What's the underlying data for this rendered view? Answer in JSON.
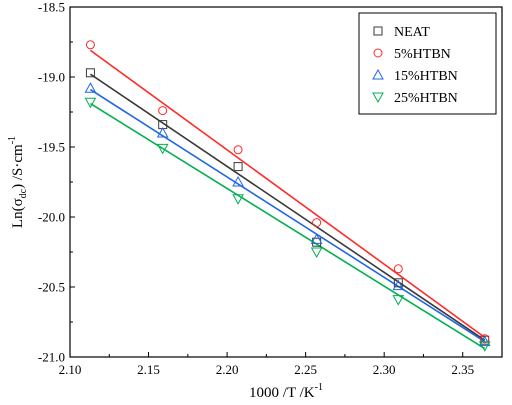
{
  "chart_data": {
    "type": "scatter",
    "title": "",
    "xlabel": "1000 /T /K",
    "xlabel_sup": "-1",
    "ylabel_prefix": "Ln(σ",
    "ylabel_sub": "dc",
    "ylabel_suffix": ") /S·cm",
    "ylabel_sup": "-1",
    "xlim": [
      2.1,
      2.375
    ],
    "ylim": [
      -21.0,
      -18.5
    ],
    "x_ticks": [
      2.1,
      2.15,
      2.2,
      2.25,
      2.3,
      2.35
    ],
    "x_tick_labels": [
      "2.10",
      "2.15",
      "2.20",
      "2.25",
      "2.30",
      "2.35"
    ],
    "y_ticks": [
      -18.5,
      -19.0,
      -19.5,
      -20.0,
      -20.5,
      -21.0
    ],
    "y_tick_labels": [
      "-18.5",
      "-19.0",
      "-19.5",
      "-20.0",
      "-20.5",
      "-21.0"
    ],
    "grid": false,
    "legend_position": "top-right",
    "series": [
      {
        "name": "NEAT",
        "color": "#3a3a3a",
        "marker": "square",
        "x": [
          2.113,
          2.159,
          2.207,
          2.257,
          2.309,
          2.364
        ],
        "y": [
          -18.97,
          -19.34,
          -19.64,
          -20.18,
          -20.47,
          -20.88
        ],
        "fit": [
          [
            2.113,
            -18.98
          ],
          [
            2.364,
            -20.88
          ]
        ]
      },
      {
        "name": "5%HTBN",
        "color": "#ff2a2a",
        "marker": "circle",
        "x": [
          2.113,
          2.159,
          2.207,
          2.257,
          2.309,
          2.364
        ],
        "y": [
          -18.77,
          -19.24,
          -19.52,
          -20.04,
          -20.37,
          -20.87
        ],
        "fit": [
          [
            2.113,
            -18.81
          ],
          [
            2.364,
            -20.86
          ]
        ]
      },
      {
        "name": "15%HTBN",
        "color": "#1f66e5",
        "marker": "triangle-up",
        "x": [
          2.113,
          2.159,
          2.207,
          2.257,
          2.309,
          2.364
        ],
        "y": [
          -19.08,
          -19.4,
          -19.75,
          -20.16,
          -20.49,
          -20.89
        ],
        "fit": [
          [
            2.113,
            -19.09
          ],
          [
            2.364,
            -20.89
          ]
        ]
      },
      {
        "name": "25%HTBN",
        "color": "#00b050",
        "marker": "triangle-down",
        "x": [
          2.113,
          2.159,
          2.207,
          2.257,
          2.309,
          2.364
        ],
        "y": [
          -19.18,
          -19.51,
          -19.87,
          -20.25,
          -20.59,
          -20.92
        ],
        "fit": [
          [
            2.113,
            -19.19
          ],
          [
            2.364,
            -20.94
          ]
        ]
      }
    ]
  }
}
